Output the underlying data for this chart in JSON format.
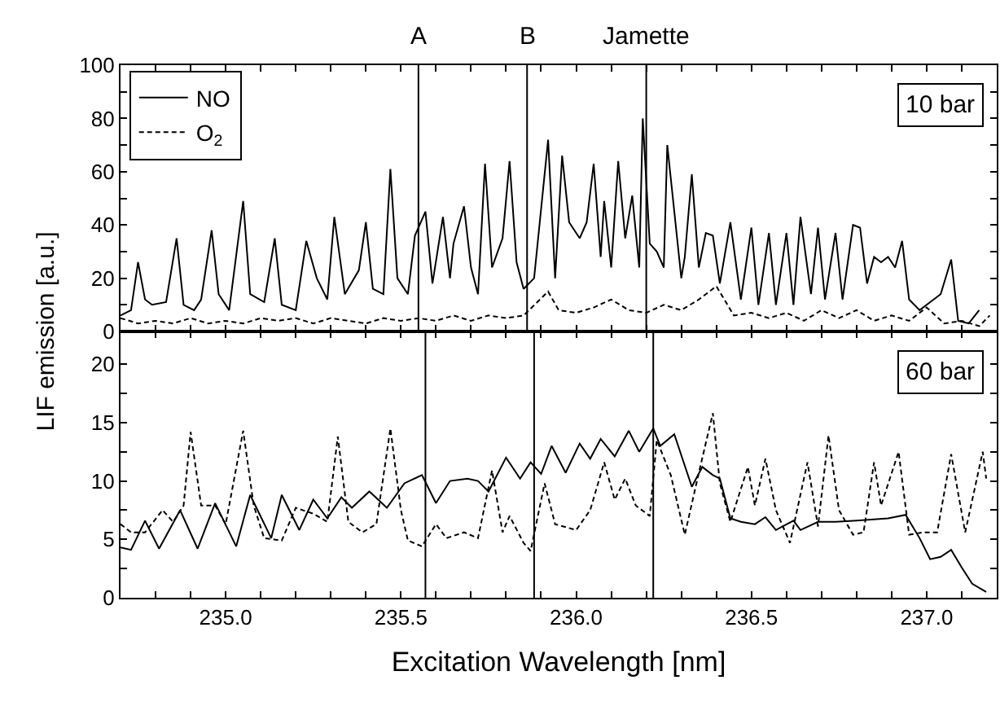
{
  "chart_data": [
    {
      "type": "line",
      "ylabel": "LIF emission [a.u.]",
      "xlim": [
        234.7,
        237.2
      ],
      "ylim": [
        0,
        100
      ],
      "xticks": [
        {
          "value": 234.8,
          "label": null
        },
        {
          "value": 234.9,
          "label": null
        },
        {
          "value": 235.0,
          "label": null
        },
        {
          "value": 235.1,
          "label": null
        },
        {
          "value": 235.2,
          "label": null
        },
        {
          "value": 235.3,
          "label": null
        },
        {
          "value": 235.4,
          "label": null
        },
        {
          "value": 235.5,
          "label": null
        },
        {
          "value": 235.6,
          "label": null
        },
        {
          "value": 235.7,
          "label": null
        },
        {
          "value": 235.8,
          "label": null
        },
        {
          "value": 235.9,
          "label": null
        },
        {
          "value": 236.0,
          "label": null
        },
        {
          "value": 236.1,
          "label": null
        },
        {
          "value": 236.2,
          "label": null
        },
        {
          "value": 236.3,
          "label": null
        },
        {
          "value": 236.4,
          "label": null
        },
        {
          "value": 236.5,
          "label": null
        },
        {
          "value": 236.6,
          "label": null
        },
        {
          "value": 236.7,
          "label": null
        },
        {
          "value": 236.8,
          "label": null
        },
        {
          "value": 236.9,
          "label": null
        },
        {
          "value": 237.0,
          "label": null
        },
        {
          "value": 237.1,
          "label": null
        }
      ],
      "yticks": [
        0,
        {
          "value": 10,
          "label": null
        },
        20,
        {
          "value": 30,
          "label": null
        },
        40,
        {
          "value": 50,
          "label": null
        },
        60,
        {
          "value": 70,
          "label": null
        },
        80,
        {
          "value": 90,
          "label": null
        },
        100
      ],
      "tick_labels": "y",
      "legend": "top left",
      "marker": "none",
      "annotations": [
        "10 bar"
      ],
      "ref_lines": [
        {
          "axis": "x",
          "value": 235.55,
          "label": "A",
          "color": "#000000"
        },
        {
          "axis": "x",
          "value": 235.86,
          "label": "B",
          "color": "#000000"
        },
        {
          "axis": "x",
          "value": 236.2,
          "label": "Jamette",
          "color": "#000000"
        }
      ],
      "series": [
        {
          "name": "NO",
          "color": "#000000",
          "line_style": "solid",
          "x": [
            234.7,
            234.73,
            234.75,
            234.77,
            234.79,
            234.83,
            234.86,
            234.88,
            234.91,
            234.93,
            234.96,
            234.98,
            235.01,
            235.05,
            235.07,
            235.11,
            235.14,
            235.16,
            235.2,
            235.23,
            235.26,
            235.29,
            235.31,
            235.34,
            235.38,
            235.4,
            235.42,
            235.45,
            235.47,
            235.49,
            235.52,
            235.54,
            235.57,
            235.59,
            235.62,
            235.64,
            235.65,
            235.68,
            235.7,
            235.72,
            235.74,
            235.76,
            235.79,
            235.81,
            235.83,
            235.85,
            235.88,
            235.92,
            235.94,
            235.96,
            235.98,
            236.01,
            236.03,
            236.05,
            236.07,
            236.08,
            236.1,
            236.12,
            236.14,
            236.16,
            236.18,
            236.19,
            236.21,
            236.23,
            236.25,
            236.26,
            236.28,
            236.3,
            236.31,
            236.33,
            236.35,
            236.37,
            236.39,
            236.41,
            236.44,
            236.47,
            236.5,
            236.52,
            236.55,
            236.57,
            236.6,
            236.62,
            236.64,
            236.67,
            236.69,
            236.71,
            236.74,
            236.76,
            236.79,
            236.81,
            236.83,
            236.85,
            236.87,
            236.89,
            236.91,
            236.93,
            236.95,
            236.98,
            237.01,
            237.04,
            237.07,
            237.09,
            237.12,
            237.15
          ],
          "values": [
            6,
            8,
            26,
            12,
            10,
            11,
            35,
            10,
            8,
            12,
            38,
            14,
            8,
            49,
            14,
            11,
            35,
            10,
            8,
            34,
            20,
            12,
            43,
            14,
            23,
            41,
            16,
            14,
            61,
            20,
            14,
            36,
            45,
            18,
            43,
            20,
            33,
            47,
            24,
            14,
            63,
            24,
            35,
            64,
            26,
            16,
            20,
            72,
            20,
            66,
            41,
            35,
            41,
            63,
            28,
            49,
            24,
            64,
            35,
            51,
            24,
            80,
            33,
            30,
            24,
            70,
            45,
            20,
            28,
            59,
            24,
            37,
            36,
            18,
            41,
            12,
            39,
            10,
            37,
            10,
            37,
            10,
            43,
            14,
            39,
            12,
            37,
            12,
            40,
            39,
            18,
            28,
            26,
            28,
            24,
            34,
            12,
            8,
            11,
            14,
            27,
            4,
            3,
            8
          ]
        },
        {
          "name": "O$_{2}$",
          "color": "#000000",
          "line_style": "dashed",
          "x": [
            234.7,
            234.75,
            234.8,
            234.85,
            234.9,
            234.95,
            235.0,
            235.05,
            235.1,
            235.15,
            235.2,
            235.25,
            235.3,
            235.35,
            235.4,
            235.45,
            235.5,
            235.55,
            235.6,
            235.65,
            235.7,
            235.75,
            235.8,
            235.85,
            235.92,
            235.95,
            236.0,
            236.05,
            236.1,
            236.15,
            236.2,
            236.25,
            236.3,
            236.35,
            236.4,
            236.45,
            236.5,
            236.55,
            236.6,
            236.65,
            236.7,
            236.75,
            236.8,
            236.85,
            236.9,
            236.95,
            237.0,
            237.05,
            237.1,
            237.15,
            237.18
          ],
          "values": [
            5,
            3,
            4,
            3,
            5,
            3,
            4,
            3,
            5,
            4,
            5,
            3,
            5,
            4,
            3,
            5,
            4,
            5,
            4,
            6,
            4,
            6,
            5,
            6,
            15,
            8,
            7,
            9,
            12,
            8,
            7,
            10,
            8,
            12,
            17,
            6,
            7,
            5,
            7,
            4,
            8,
            5,
            8,
            4,
            6,
            4,
            9,
            3,
            4,
            2,
            6
          ]
        }
      ]
    },
    {
      "type": "line",
      "xlabel": "Excitation Wavelength [nm]",
      "xlim": [
        234.7,
        237.2
      ],
      "ylim": [
        0,
        22.8
      ],
      "xticks": [
        {
          "value": 234.8,
          "label": null
        },
        {
          "value": 234.9,
          "label": null
        },
        {
          "value": 235.0,
          "label": "235.0"
        },
        {
          "value": 235.1,
          "label": null
        },
        {
          "value": 235.2,
          "label": null
        },
        {
          "value": 235.3,
          "label": null
        },
        {
          "value": 235.4,
          "label": null
        },
        {
          "value": 235.5,
          "label": "235.5"
        },
        {
          "value": 235.6,
          "label": null
        },
        {
          "value": 235.7,
          "label": null
        },
        {
          "value": 235.8,
          "label": null
        },
        {
          "value": 235.9,
          "label": null
        },
        {
          "value": 236.0,
          "label": "236.0"
        },
        {
          "value": 236.1,
          "label": null
        },
        {
          "value": 236.2,
          "label": null
        },
        {
          "value": 236.3,
          "label": null
        },
        {
          "value": 236.4,
          "label": null
        },
        {
          "value": 236.5,
          "label": "236.5"
        },
        {
          "value": 236.6,
          "label": null
        },
        {
          "value": 236.7,
          "label": null
        },
        {
          "value": 236.8,
          "label": null
        },
        {
          "value": 236.9,
          "label": null
        },
        {
          "value": 237.0,
          "label": "237.0"
        },
        {
          "value": 237.1,
          "label": null
        }
      ],
      "yticks": [
        0,
        {
          "value": 2.5,
          "label": null
        },
        5,
        {
          "value": 7.5,
          "label": null
        },
        10,
        {
          "value": 12.5,
          "label": null
        },
        15,
        {
          "value": 17.5,
          "label": null
        },
        20
      ],
      "marker": "none",
      "legend": false,
      "annotations": [
        "60 bar"
      ],
      "ref_lines": [
        {
          "axis": "x",
          "value": 235.57,
          "color": "#000000"
        },
        {
          "axis": "x",
          "value": 235.88,
          "color": "#000000"
        },
        {
          "axis": "x",
          "value": 236.22,
          "color": "#000000"
        }
      ],
      "series": [
        {
          "color": "#000000",
          "line_style": "solid",
          "x": [
            234.7,
            234.73,
            234.77,
            234.81,
            234.87,
            234.92,
            234.97,
            235.03,
            235.07,
            235.13,
            235.16,
            235.21,
            235.25,
            235.29,
            235.33,
            235.36,
            235.41,
            235.46,
            235.51,
            235.56,
            235.6,
            235.64,
            235.69,
            235.72,
            235.75,
            235.8,
            235.84,
            235.87,
            235.9,
            235.93,
            235.97,
            236.01,
            236.04,
            236.07,
            236.11,
            236.15,
            236.18,
            236.22,
            236.24,
            236.28,
            236.33,
            236.36,
            236.39,
            236.41,
            236.44,
            236.47,
            236.51,
            236.54,
            236.57,
            236.62,
            236.64,
            236.69,
            236.74,
            236.8,
            236.89,
            236.94,
            236.98,
            237.01,
            237.04,
            237.07,
            237.1,
            237.13,
            237.17
          ],
          "values": [
            4.3,
            4.1,
            6.6,
            4.2,
            7.5,
            4.2,
            8.1,
            4.4,
            8.8,
            5.1,
            8.8,
            5.8,
            8.4,
            6.8,
            8.6,
            7.7,
            9.1,
            7.7,
            9.8,
            10.5,
            8.1,
            10.0,
            10.2,
            10.0,
            9.1,
            12.0,
            10.2,
            11.6,
            10.6,
            13.0,
            10.7,
            13.2,
            11.9,
            13.6,
            12.1,
            14.3,
            12.5,
            14.5,
            13.0,
            14.0,
            9.5,
            11.2,
            10.5,
            10.2,
            6.8,
            6.5,
            6.3,
            6.9,
            5.8,
            6.6,
            5.8,
            6.5,
            6.5,
            6.6,
            6.8,
            7.1,
            5.1,
            3.3,
            3.5,
            4.1,
            2.6,
            1.2,
            0.5
          ]
        },
        {
          "color": "#000000",
          "line_style": "dashed",
          "x": [
            234.7,
            234.73,
            234.77,
            234.82,
            234.85,
            234.88,
            234.9,
            234.93,
            234.97,
            235.0,
            235.05,
            235.08,
            235.11,
            235.16,
            235.2,
            235.25,
            235.29,
            235.32,
            235.35,
            235.39,
            235.43,
            235.47,
            235.5,
            235.52,
            235.56,
            235.6,
            235.63,
            235.68,
            235.72,
            235.76,
            235.79,
            235.81,
            235.85,
            235.87,
            235.91,
            235.94,
            236.0,
            236.04,
            236.08,
            236.11,
            236.14,
            236.17,
            236.21,
            236.23,
            236.27,
            236.31,
            236.35,
            236.39,
            236.41,
            236.44,
            236.49,
            236.51,
            236.54,
            236.57,
            236.61,
            236.66,
            236.69,
            236.72,
            236.75,
            236.79,
            236.82,
            236.85,
            236.87,
            236.92,
            236.95,
            236.99,
            237.03,
            237.07,
            237.11,
            237.16,
            237.17
          ],
          "values": [
            6.3,
            5.6,
            5.6,
            7.5,
            6.5,
            7.9,
            14.2,
            7.9,
            7.9,
            6.3,
            14.3,
            7.9,
            5.1,
            4.9,
            7.7,
            7.2,
            6.5,
            13.8,
            6.5,
            5.6,
            6.3,
            14.5,
            7.5,
            4.9,
            4.4,
            6.3,
            5.1,
            5.6,
            5.1,
            10.9,
            5.6,
            7.0,
            4.7,
            4.0,
            9.8,
            6.3,
            5.8,
            7.5,
            11.6,
            8.4,
            10.2,
            7.9,
            7.0,
            13.5,
            10.5,
            5.4,
            10.7,
            15.8,
            9.8,
            6.5,
            11.2,
            7.9,
            11.9,
            7.5,
            4.7,
            11.6,
            6.1,
            13.9,
            7.5,
            5.4,
            5.6,
            11.6,
            7.9,
            12.5,
            5.4,
            5.6,
            5.6,
            12.3,
            5.6,
            12.5,
            10.2
          ]
        }
      ]
    }
  ]
}
